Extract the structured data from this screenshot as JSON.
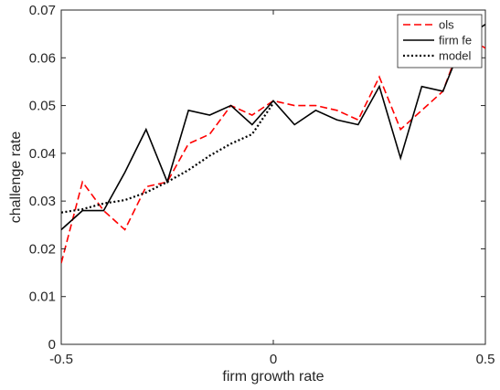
{
  "chart_data": {
    "type": "line",
    "title": "",
    "xlabel": "firm growth rate",
    "ylabel": "challenge rate",
    "xlim": [
      -0.5,
      0.5
    ],
    "ylim": [
      0,
      0.07
    ],
    "xticks": [
      -0.5,
      0,
      0.5
    ],
    "xtick_labels": [
      "-0.5",
      "0",
      "0.5"
    ],
    "yticks": [
      0,
      0.01,
      0.02,
      0.03,
      0.04,
      0.05,
      0.06,
      0.07
    ],
    "ytick_labels": [
      "0",
      "0.01",
      "0.02",
      "0.03",
      "0.04",
      "0.05",
      "0.06",
      "0.07"
    ],
    "grid": false,
    "legend_position": "top-right",
    "series": [
      {
        "name": "ols",
        "color": "#ff0000",
        "style": "dashed",
        "x": [
          -0.5,
          -0.45,
          -0.4,
          -0.35,
          -0.3,
          -0.25,
          -0.2,
          -0.15,
          -0.1,
          -0.05,
          0,
          0.05,
          0.1,
          0.15,
          0.2,
          0.25,
          0.3,
          0.35,
          0.4,
          0.45,
          0.5
        ],
        "y": [
          0.017,
          0.034,
          0.028,
          0.024,
          0.033,
          0.034,
          0.042,
          0.044,
          0.05,
          0.048,
          0.051,
          0.05,
          0.05,
          0.049,
          0.047,
          0.056,
          0.045,
          0.049,
          0.053,
          0.065,
          0.062
        ]
      },
      {
        "name": "firm fe",
        "color": "#000000",
        "style": "solid",
        "x": [
          -0.5,
          -0.45,
          -0.4,
          -0.35,
          -0.3,
          -0.25,
          -0.2,
          -0.15,
          -0.1,
          -0.05,
          0,
          0.05,
          0.1,
          0.15,
          0.2,
          0.25,
          0.3,
          0.35,
          0.4,
          0.45,
          0.5
        ],
        "y": [
          0.024,
          0.028,
          0.028,
          0.036,
          0.045,
          0.034,
          0.049,
          0.048,
          0.05,
          0.046,
          0.051,
          0.046,
          0.049,
          0.047,
          0.046,
          0.054,
          0.039,
          0.054,
          0.053,
          0.064,
          0.067
        ]
      },
      {
        "name": "model",
        "color": "#000000",
        "style": "dotted",
        "x": [
          -0.5,
          -0.45,
          -0.4,
          -0.35,
          -0.3,
          -0.25,
          -0.2,
          -0.15,
          -0.1,
          -0.05,
          0
        ],
        "y": [
          0.0276,
          0.0283,
          0.0295,
          0.0302,
          0.0318,
          0.034,
          0.0365,
          0.0395,
          0.042,
          0.044,
          0.0505
        ]
      }
    ]
  }
}
